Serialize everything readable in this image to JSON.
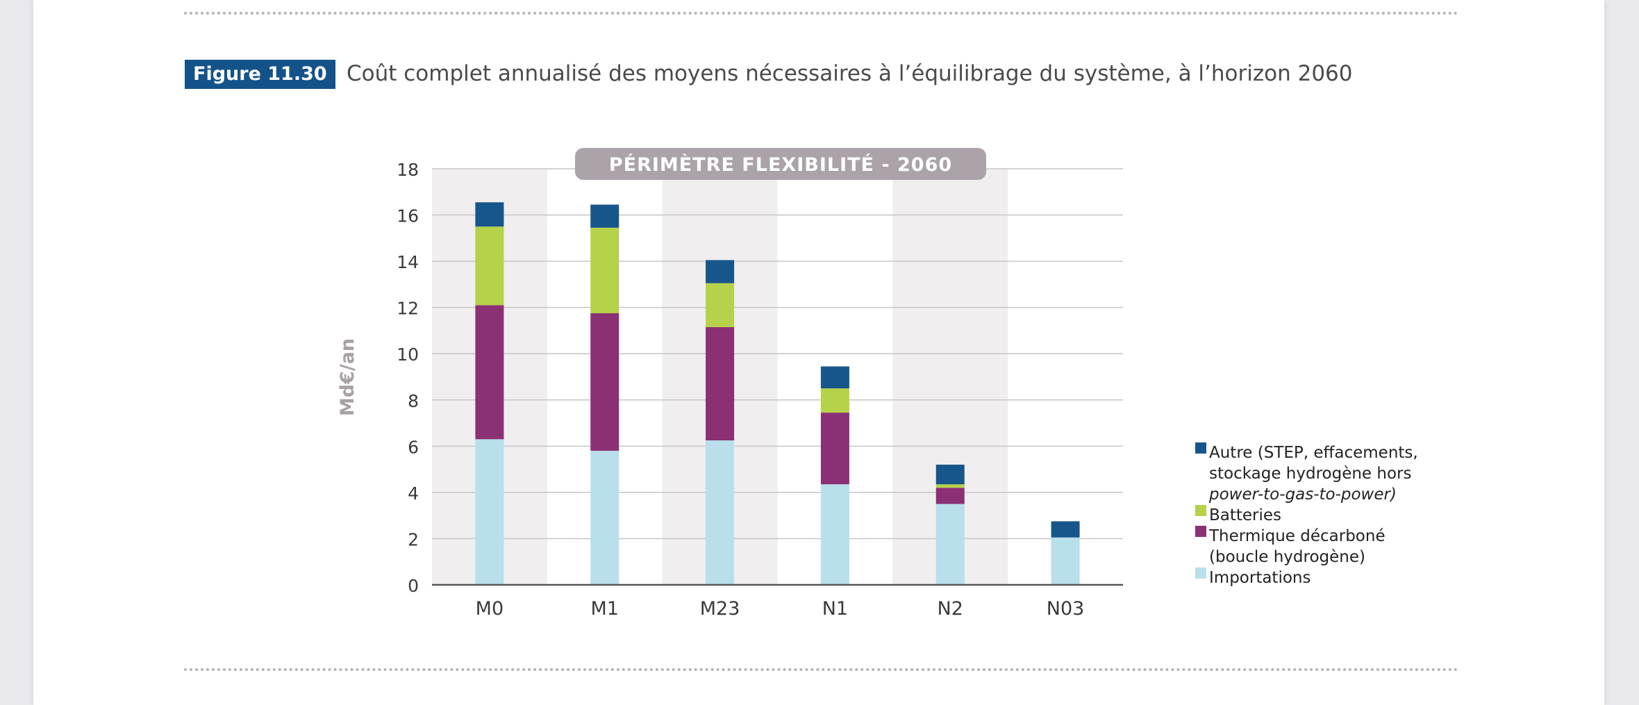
{
  "figure": {
    "label": "Figure 11.30",
    "title": "Coût complet annualisé des moyens nécessaires à l’équilibrage du système, à l’horizon 2060"
  },
  "chart_data": {
    "type": "bar",
    "stacked": true,
    "banner": "PÉRIMÈTRE FLEXIBILITÉ - 2060",
    "ylabel": "Md€/an",
    "xlabel": "",
    "ylim": [
      0,
      18
    ],
    "yticks": [
      0,
      2,
      4,
      6,
      8,
      10,
      12,
      14,
      16,
      18
    ],
    "categories": [
      "M0",
      "M1",
      "M23",
      "N1",
      "N2",
      "N03"
    ],
    "series": [
      {
        "name": "Importations",
        "color": "#b8dfeb",
        "values": [
          6.3,
          5.8,
          6.25,
          4.35,
          3.5,
          2.05
        ]
      },
      {
        "name": "Thermique décarboné (boucle hydrogène)",
        "color": "#8b3074",
        "values": [
          5.8,
          5.95,
          4.9,
          3.1,
          0.7,
          0
        ]
      },
      {
        "name": "Batteries",
        "color": "#b5d24a",
        "values": [
          3.4,
          3.7,
          1.9,
          1.05,
          0.15,
          0
        ]
      },
      {
        "name": "Autre (STEP, effacements, stockage hydrogène hors power-to-gas-to-power)",
        "color": "#17568a",
        "values": [
          1.05,
          1.0,
          1.0,
          0.95,
          0.85,
          0.7
        ]
      }
    ],
    "legend": [
      {
        "lines": [
          "Autre (STEP, effacements,",
          "stockage hydrogène hors"
        ],
        "italic_line": "power-to-gas-to-power)",
        "color": "#17568a"
      },
      {
        "lines": [
          "Batteries"
        ],
        "color": "#b5d24a"
      },
      {
        "lines": [
          "Thermique décarboné",
          "(boucle hydrogène)"
        ],
        "color": "#8b3074"
      },
      {
        "lines": [
          "Importations"
        ],
        "color": "#b8dfeb"
      }
    ],
    "legend_position": "right",
    "grid": true
  }
}
